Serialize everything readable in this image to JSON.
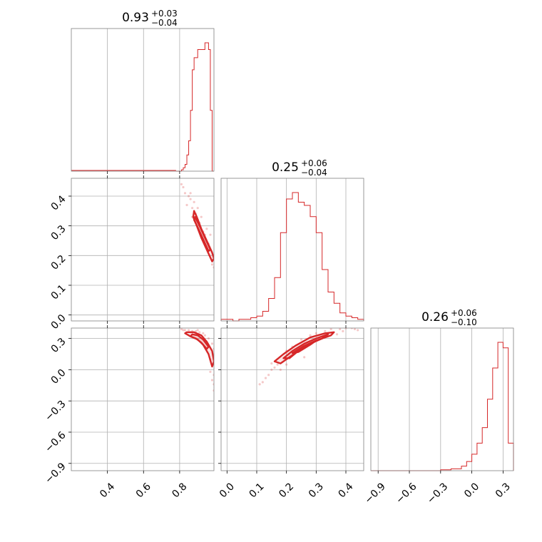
{
  "chart_data": {
    "type": "corner",
    "color": "#d62728",
    "params": [
      {
        "title_median": "0.93",
        "title_plus": "+0.03",
        "title_minus": "−0.04",
        "range": [
          0.2,
          0.99
        ],
        "ticks": [
          0.4,
          0.6,
          0.8
        ],
        "tick_labels": [
          "0.4",
          "0.6",
          "0.8"
        ]
      },
      {
        "title_median": "0.25",
        "title_plus": "+0.06",
        "title_minus": "−0.04",
        "range": [
          -0.02,
          0.46
        ],
        "ticks": [
          0.0,
          0.1,
          0.2,
          0.3,
          0.4
        ],
        "tick_labels": [
          "0.0",
          "0.1",
          "0.2",
          "0.3",
          "0.4"
        ]
      },
      {
        "title_median": "0.26",
        "title_plus": "+0.06",
        "title_minus": "−0.10",
        "range": [
          -0.97,
          0.4
        ],
        "ticks": [
          -0.9,
          -0.6,
          -0.3,
          0.0,
          0.3
        ],
        "tick_labels": [
          "−0.9",
          "−0.6",
          "−0.3",
          "0.0",
          "0.3"
        ]
      }
    ],
    "histograms": [
      {
        "edges": [
          0.78,
          0.79,
          0.8,
          0.81,
          0.82,
          0.83,
          0.84,
          0.85,
          0.86,
          0.87,
          0.88,
          0.89,
          0.9,
          0.91,
          0.92,
          0.93,
          0.94,
          0.95,
          0.96,
          0.97,
          0.98,
          0.99
        ],
        "counts": [
          0,
          0,
          0,
          2,
          5,
          10,
          24,
          45,
          90,
          150,
          168,
          168,
          180,
          180,
          180,
          180,
          190,
          190,
          180,
          90,
          0
        ]
      },
      {
        "edges": [
          -0.02,
          0.0,
          0.02,
          0.04,
          0.06,
          0.08,
          0.1,
          0.12,
          0.14,
          0.16,
          0.18,
          0.2,
          0.22,
          0.24,
          0.26,
          0.28,
          0.3,
          0.32,
          0.34,
          0.36,
          0.38,
          0.4,
          0.42,
          0.44,
          0.46
        ],
        "counts": [
          1,
          1,
          0,
          1,
          1,
          2,
          3,
          6,
          14,
          27,
          55,
          76,
          80,
          74,
          72,
          65,
          55,
          32,
          18,
          11,
          5,
          3,
          2,
          1
        ]
      },
      {
        "edges": [
          -0.97,
          -0.9,
          -0.8,
          -0.7,
          -0.6,
          -0.5,
          -0.4,
          -0.3,
          -0.2,
          -0.1,
          -0.05,
          0.0,
          0.05,
          0.1,
          0.15,
          0.2,
          0.25,
          0.3,
          0.35,
          0.4
        ],
        "counts": [
          0,
          0,
          0,
          0,
          0,
          0,
          0,
          1,
          2,
          5,
          10,
          18,
          30,
          47,
          78,
          112,
          140,
          134,
          30
        ]
      }
    ],
    "pairs": [
      {
        "x_param": 0,
        "y_param": 1,
        "contours": [
          [
            [
              0.88,
              0.35
            ],
            [
              0.895,
              0.33
            ],
            [
              0.92,
              0.29
            ],
            [
              0.95,
              0.25
            ],
            [
              0.98,
              0.21
            ],
            [
              0.99,
              0.19
            ],
            [
              0.98,
              0.18
            ],
            [
              0.95,
              0.22
            ],
            [
              0.92,
              0.26
            ],
            [
              0.895,
              0.3
            ],
            [
              0.875,
              0.33
            ]
          ],
          [
            [
              0.885,
              0.33
            ],
            [
              0.91,
              0.3
            ],
            [
              0.94,
              0.26
            ],
            [
              0.97,
              0.22
            ],
            [
              0.96,
              0.215
            ],
            [
              0.93,
              0.255
            ],
            [
              0.9,
              0.295
            ],
            [
              0.88,
              0.32
            ]
          ]
        ],
        "points": [
          [
            0.81,
            0.44
          ],
          [
            0.82,
            0.43
          ],
          [
            0.83,
            0.41
          ],
          [
            0.85,
            0.4
          ],
          [
            0.86,
            0.39
          ],
          [
            0.84,
            0.37
          ],
          [
            0.87,
            0.36
          ],
          [
            0.88,
            0.35
          ],
          [
            0.89,
            0.34
          ],
          [
            0.9,
            0.32
          ],
          [
            0.91,
            0.31
          ],
          [
            0.93,
            0.28
          ],
          [
            0.94,
            0.27
          ],
          [
            0.96,
            0.24
          ],
          [
            0.97,
            0.22
          ],
          [
            0.86,
            0.41
          ],
          [
            0.9,
            0.36
          ],
          [
            0.95,
            0.29
          ],
          [
            0.98,
            0.17
          ],
          [
            0.99,
            0.16
          ],
          [
            0.88,
            0.38
          ],
          [
            0.92,
            0.33
          ],
          [
            0.97,
            0.27
          ],
          [
            0.87,
            0.33
          ]
        ]
      },
      {
        "x_param": 0,
        "y_param": 2,
        "contours": [
          [
            [
              0.84,
              0.36
            ],
            [
              0.88,
              0.36
            ],
            [
              0.92,
              0.33
            ],
            [
              0.95,
              0.27
            ],
            [
              0.98,
              0.18
            ],
            [
              0.99,
              0.08
            ],
            [
              0.98,
              0.03
            ],
            [
              0.96,
              0.15
            ],
            [
              0.93,
              0.24
            ],
            [
              0.9,
              0.29
            ],
            [
              0.86,
              0.32
            ],
            [
              0.83,
              0.35
            ]
          ],
          [
            [
              0.87,
              0.34
            ],
            [
              0.9,
              0.33
            ],
            [
              0.93,
              0.29
            ],
            [
              0.96,
              0.22
            ],
            [
              0.95,
              0.2
            ],
            [
              0.92,
              0.26
            ],
            [
              0.89,
              0.3
            ],
            [
              0.86,
              0.32
            ]
          ]
        ],
        "points": [
          [
            0.81,
            0.39
          ],
          [
            0.82,
            0.38
          ],
          [
            0.83,
            0.38
          ],
          [
            0.85,
            0.38
          ],
          [
            0.87,
            0.37
          ],
          [
            0.89,
            0.37
          ],
          [
            0.91,
            0.36
          ],
          [
            0.94,
            0.33
          ],
          [
            0.96,
            0.3
          ],
          [
            0.98,
            0.25
          ],
          [
            0.99,
            0.2
          ],
          [
            0.99,
            -0.05
          ],
          [
            0.98,
            -0.1
          ],
          [
            0.99,
            -0.14
          ],
          [
            0.97,
            0.1
          ],
          [
            0.9,
            0.38
          ],
          [
            0.86,
            0.36
          ],
          [
            0.93,
            0.35
          ],
          [
            0.97,
            -0.02
          ],
          [
            0.99,
            -0.2
          ]
        ]
      },
      {
        "x_param": 1,
        "y_param": 2,
        "contours": [
          [
            [
              0.16,
              0.08
            ],
            [
              0.19,
              0.15
            ],
            [
              0.23,
              0.23
            ],
            [
              0.28,
              0.31
            ],
            [
              0.33,
              0.35
            ],
            [
              0.36,
              0.36
            ],
            [
              0.35,
              0.33
            ],
            [
              0.3,
              0.28
            ],
            [
              0.25,
              0.2
            ],
            [
              0.21,
              0.12
            ],
            [
              0.18,
              0.06
            ]
          ],
          [
            [
              0.19,
              0.11
            ],
            [
              0.22,
              0.18
            ],
            [
              0.26,
              0.25
            ],
            [
              0.3,
              0.3
            ],
            [
              0.34,
              0.34
            ],
            [
              0.32,
              0.3
            ],
            [
              0.28,
              0.25
            ],
            [
              0.24,
              0.18
            ],
            [
              0.21,
              0.11
            ]
          ],
          [
            [
              0.22,
              0.16
            ],
            [
              0.26,
              0.23
            ],
            [
              0.3,
              0.28
            ],
            [
              0.28,
              0.24
            ],
            [
              0.24,
              0.17
            ]
          ]
        ],
        "points": [
          [
            0.12,
            -0.12
          ],
          [
            0.13,
            -0.08
          ],
          [
            0.14,
            -0.05
          ],
          [
            0.15,
            0.0
          ],
          [
            0.16,
            0.02
          ],
          [
            0.17,
            0.05
          ],
          [
            0.18,
            0.0
          ],
          [
            0.2,
            0.05
          ],
          [
            0.2,
            0.18
          ],
          [
            0.25,
            0.29
          ],
          [
            0.3,
            0.35
          ],
          [
            0.35,
            0.39
          ],
          [
            0.38,
            0.39
          ],
          [
            0.4,
            0.4
          ],
          [
            0.42,
            0.4
          ],
          [
            0.43,
            0.39
          ],
          [
            0.44,
            0.38
          ],
          [
            0.37,
            0.34
          ],
          [
            0.33,
            0.37
          ],
          [
            0.28,
            0.33
          ],
          [
            0.22,
            0.22
          ],
          [
            0.26,
            0.12
          ],
          [
            0.15,
            0.06
          ],
          [
            0.11,
            -0.14
          ],
          [
            0.39,
            0.37
          ]
        ]
      }
    ]
  }
}
